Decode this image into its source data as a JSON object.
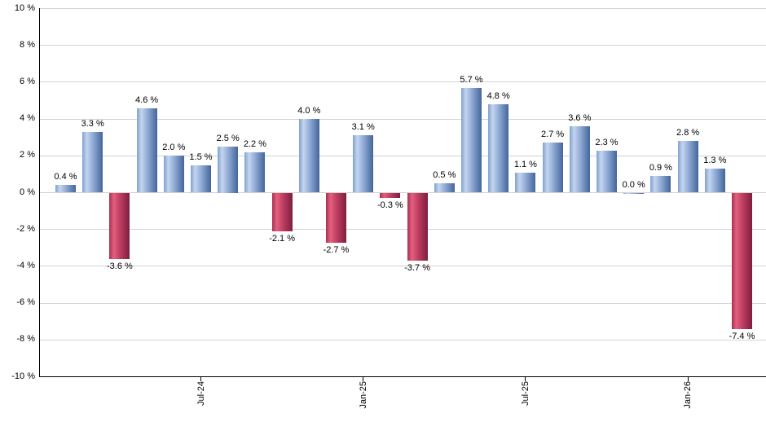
{
  "chart_data": {
    "type": "bar",
    "title": "",
    "legend": "none",
    "grid": "horizontal",
    "ylim": [
      -10,
      10
    ],
    "bar_count": 26,
    "values": [
      0.4,
      3.3,
      -3.6,
      4.6,
      2.0,
      1.5,
      2.5,
      2.2,
      -2.1,
      4.0,
      -2.7,
      3.1,
      -0.3,
      -3.7,
      0.5,
      5.7,
      4.8,
      1.1,
      2.7,
      3.6,
      2.3,
      0.0,
      0.9,
      2.8,
      1.3,
      -7.4
    ],
    "value_labels": [
      "0.4 %",
      "3.3 %",
      "-3.6 %",
      "4.6 %",
      "2.0 %",
      "1.5 %",
      "2.5 %",
      "2.2 %",
      "-2.1 %",
      "4.0 %",
      "-2.7 %",
      "3.1 %",
      "-0.3 %",
      "-3.7 %",
      "0.5 %",
      "5.7 %",
      "4.8 %",
      "1.1 %",
      "2.7 %",
      "3.6 %",
      "2.3 %",
      "0.0 %",
      "0.9 %",
      "2.8 %",
      "1.3 %",
      "-7.4 %"
    ],
    "y_ticks": [
      10,
      8,
      6,
      4,
      2,
      0,
      -2,
      -4,
      -6,
      -8,
      -10
    ],
    "y_tick_labels": [
      "10 %",
      "8 %",
      "6 %",
      "4 %",
      "2 %",
      "0 %",
      "-2 %",
      "-4 %",
      "-6 %",
      "-8 %",
      "-10 %"
    ],
    "x_tick_labels": [
      "Jul-24",
      "Jan-25",
      "Jul-25",
      "Jan-26"
    ],
    "x_tick_bar_indices": [
      5,
      11,
      17,
      23
    ],
    "colors": {
      "positive_bar_gradient": [
        {
          "color": "#7fa1d1",
          "stop": 0
        },
        {
          "color": "#c5d5ee",
          "stop": 22
        },
        {
          "color": "#96b1da",
          "stop": 48
        },
        {
          "color": "#44659b",
          "stop": 100
        }
      ],
      "negative_bar_gradient": [
        {
          "color": "#a82f54",
          "stop": 0
        },
        {
          "color": "#e4607e",
          "stop": 22
        },
        {
          "color": "#bc3c60",
          "stop": 55
        },
        {
          "color": "#7e1f3e",
          "stop": 100
        }
      ],
      "gridline": "#d2d2d2",
      "axis": "#000000",
      "label_text": "#000000",
      "background": "#ffffff"
    }
  }
}
